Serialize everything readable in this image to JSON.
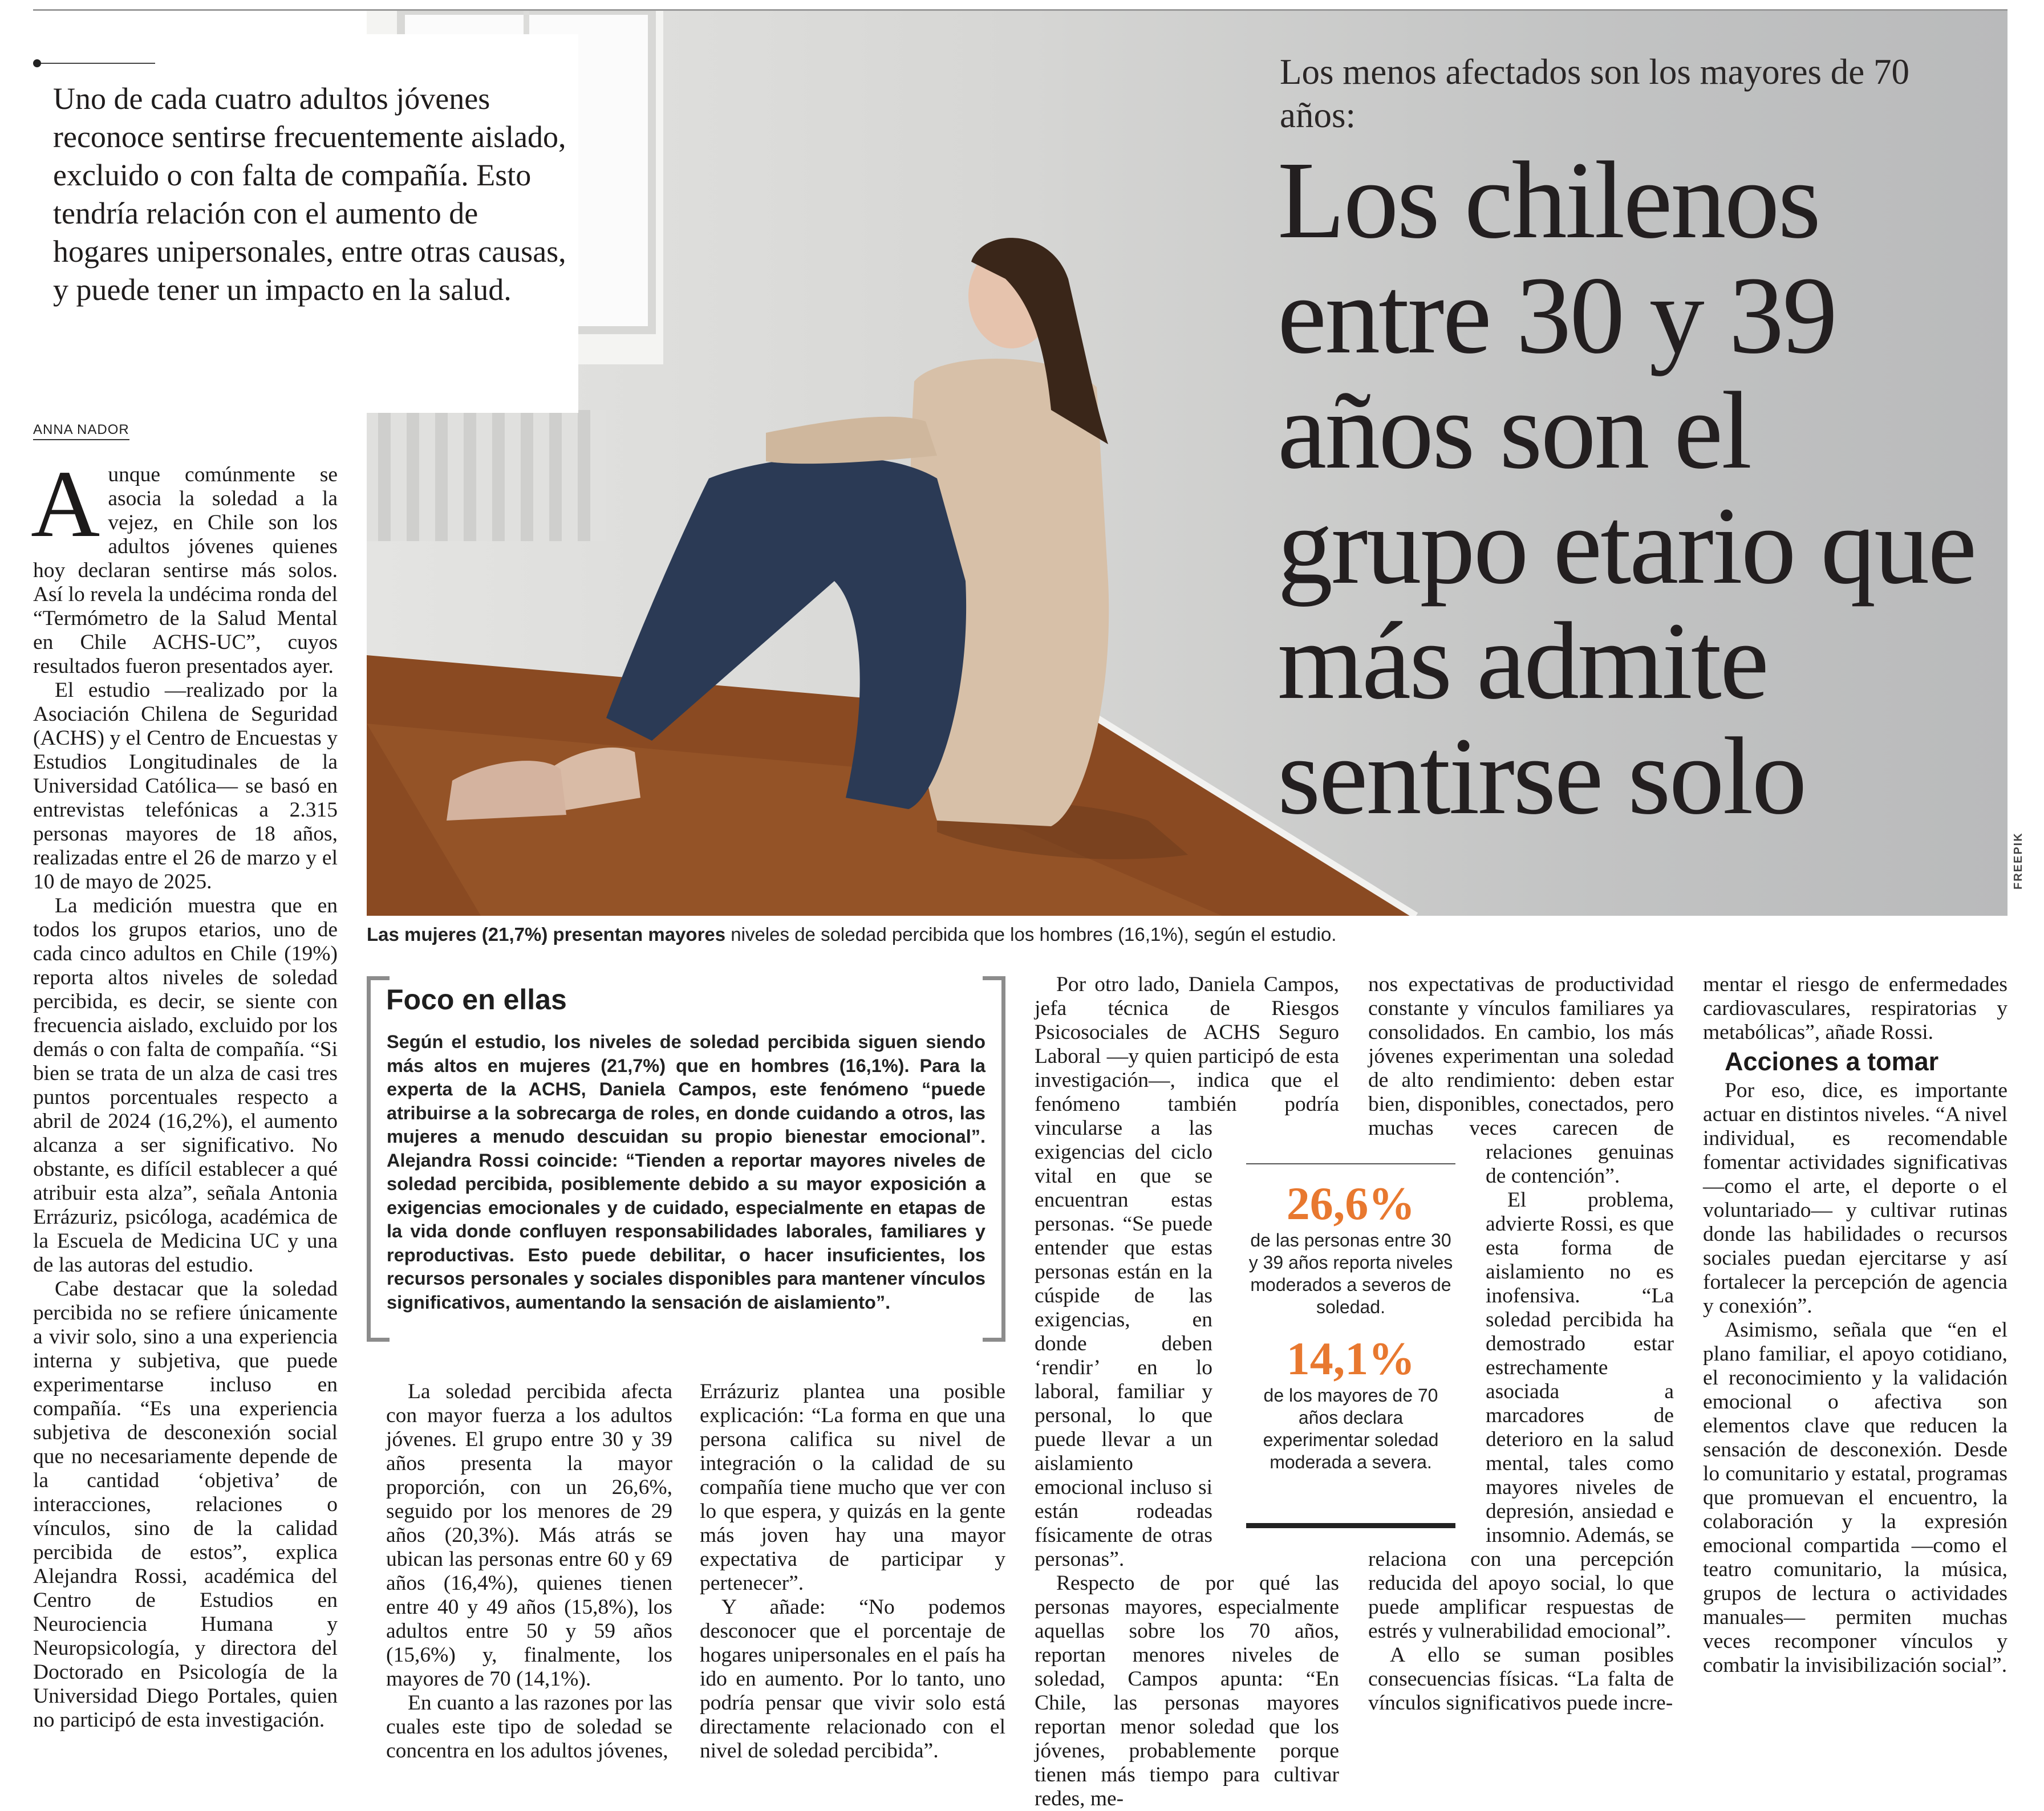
{
  "colors": {
    "accent_orange": "#e8782f",
    "text": "#1c1a1a",
    "rule_gray": "#8c8c8c"
  },
  "photo": {
    "credit": "FREEPIK",
    "caption_bold": "Las mujeres (21,7%) presentan mayores",
    "caption_rest": " niveles de soledad percibida que los hombres (16,1%), según el estudio."
  },
  "intro": "Uno de cada cuatro adultos jóvenes reconoce sentirse frecuentemente aislado, excluido o con falta de compañía. Esto tendría relación con el aumento de hogares unipersonales, entre otras causas, y puede tener un impacto en la salud.",
  "kicker": "Los menos afectados son los mayores de 70 años:",
  "headline": "Los chilenos entre 30 y 39 años son el grupo etario que más admite sentirse solo",
  "byline": "ANNA NADOR",
  "col1": {
    "dropcap": "A",
    "p1_rest": "unque comúnmente se asocia la soledad a la vejez, en Chile son los adultos jóvenes quienes hoy declaran sentirse más solos. Así lo revela la undécima ronda del “Termómetro de la Salud Mental en Chile ACHS-UC”, cuyos resultados fueron presentados ayer.",
    "paragraphs": [
      "El estudio —realizado por la Asociación Chilena de Seguridad (ACHS) y el Centro de Encuestas y Estudios Longitudinales de la Universidad Católica— se basó en entrevistas telefónicas a 2.315 personas mayores de 18 años, realizadas entre el 26 de marzo y el 10 de mayo de 2025.",
      "La medición muestra que en todos los grupos etarios, uno de cada cinco adultos en Chile (19%) reporta altos niveles de soledad percibida, es decir, se siente con frecuencia aislado, excluido por los demás o con falta de compañía. “Si bien se trata de un alza de casi tres puntos porcentuales respecto a abril de 2024 (16,2%), el aumento alcanza a ser significativo. No obstante, es difícil establecer a qué atribuir esta alza”, señala Antonia Errázuriz, psicóloga, académica de la Escuela de Medicina UC y una de las autoras del estudio.",
      "Cabe destacar que la soledad percibida no se refiere únicamente a vivir solo, sino a una experiencia interna y subjetiva, que puede experimentarse incluso en compañía. “Es una experiencia subjetiva de desconexión social que no necesariamente depende de la cantidad ‘objetiva’ de interacciones, relaciones o vínculos, sino de la calidad percibida de estos”, explica Alejandra Rossi, académica del Centro de Estudios en Neurociencia Humana y Neuropsicología, y directora del Doctorado en Psicología de la Universidad Diego Portales, quien no participó de esta investigación."
    ]
  },
  "foco": {
    "title": "Foco en ellas",
    "body": "Según el estudio, los niveles de soledad percibida siguen siendo más altos en mujeres (21,7%) que en hombres (16,1%). Para la experta de la ACHS, Daniela Campos, este fenómeno “puede atribuirse a la sobrecarga de roles, en donde cuidando a otros, las mujeres a menudo descuidan su propio bienestar emocional”. Alejandra Rossi coincide: “Tienden a reportar mayores niveles de soledad percibida, posiblemente debido a su mayor exposición a exigencias emocionales y de cuidado, especialmente en etapas de la vida donde confluyen responsabilidades laborales, familiares y reproductivas. Esto puede debilitar, o hacer insuficientes, los recursos personales y sociales disponibles para mantener vínculos significativos, aumentando la sensación de aislamiento”."
  },
  "col2": [
    "La soledad percibida afecta con mayor fuerza a los adultos jóvenes. El grupo entre 30 y 39 años presenta la mayor proporción, con un 26,6%, seguido por los menores de 29 años (20,3%). Más atrás se ubican las personas entre 60 y 69 años (16,4%), quienes tienen entre 40 y 49 años (15,8%), los adultos entre 50 y 59 años (15,6%) y, finalmente, los mayores de 70 (14,1%).",
    "En cuanto a las razones por las cuales este tipo de soledad se concentra en los adultos jóvenes,"
  ],
  "col3": [
    "Errázuriz plantea una posible explicación: “La forma en que una persona califica su nivel de integración o la calidad de su compañía tiene mucho que ver con lo que espera, y quizás en la gente más joven hay una mayor expectativa de participar y pertenecer”.",
    "Y añade: “No podemos desconocer que el porcentaje de hogares unipersonales en el país ha ido en aumento. Por lo tanto, uno podría pensar que vivir solo está directamente relacionado con el nivel de soledad percibida”."
  ],
  "col4": [
    "Por otro lado, Daniela Campos, jefa técnica de Riesgos Psicosociales de ACHS Seguro Laboral —y quien participó de esta investigación—, indica que el fenómeno también podría vincularse a las exigencias del ciclo vital en que se encuentran estas personas. “Se puede entender que estas personas están en la cúspide de las exigencias, en donde deben ‘rendir’ en lo laboral, familiar y personal, lo que puede llevar a un aislamiento emocional incluso si están rodeadas físicamente de otras personas”.",
    "Respecto de por qué las personas mayores, especialmente aquellas sobre los 70 años, reportan menores niveles de soledad, Campos apunta: “En Chile, las personas mayores reportan menor soledad que los jóvenes, probablemente porque tienen más tiempo para cultivar redes, me-"
  ],
  "col5": [
    "nos expectativas de productividad constante y vínculos familiares ya consolidados. En cambio, los más jóvenes experimentan una soledad de alto rendimiento: deben estar bien, disponibles, conectados, pero muchas veces carecen de relaciones genuinas de contención”.",
    "El problema, advierte Rossi, es que esta forma de aislamiento no es inofensiva. “La soledad percibida ha demostrado estar estrechamente asociada a marcadores de deterioro en la salud mental, tales como mayores niveles de depresión, ansiedad e insomnio. Además, se relaciona con una percepción reducida del apoyo social, lo que puede amplificar respuestas de estrés y vulnerabilidad emocional”.",
    "A ello se suman posibles consecuencias físicas. “La falta de vínculos significativos puede incre-"
  ],
  "col6": {
    "lead": "mentar el riesgo de enfermedades cardiovasculares, respiratorias y metabólicas”, añade Rossi.",
    "subhead": "Acciones a tomar",
    "paragraphs": [
      "Por eso, dice, es importante actuar en distintos niveles. “A nivel individual, es recomendable fomentar actividades significativas —como el arte, el deporte o el voluntariado— y cultivar rutinas donde las habilidades o recursos sociales puedan ejercitarse y así fortalecer la percepción de agencia y conexión”.",
      "Asimismo, señala que “en el plano familiar, el apoyo cotidiano, el reconocimiento y la validación emocional o afectiva son elementos clave que reducen la sensación de desconexión. Desde lo comunitario y estatal, programas que promuevan el encuentro, la colaboración y la expresión emocional compartida —como el teatro comunitario, la música, grupos de lectura o actividades manuales— permiten muchas veces recomponer vínculos y combatir la invisibilización social”."
    ]
  },
  "stats": [
    {
      "value": "26,6%",
      "text": "de las personas entre 30 y 39 años reporta niveles moderados a severos de soledad."
    },
    {
      "value": "14,1%",
      "text": "de los mayores de 70 años declara experimentar soledad moderada a severa."
    }
  ]
}
